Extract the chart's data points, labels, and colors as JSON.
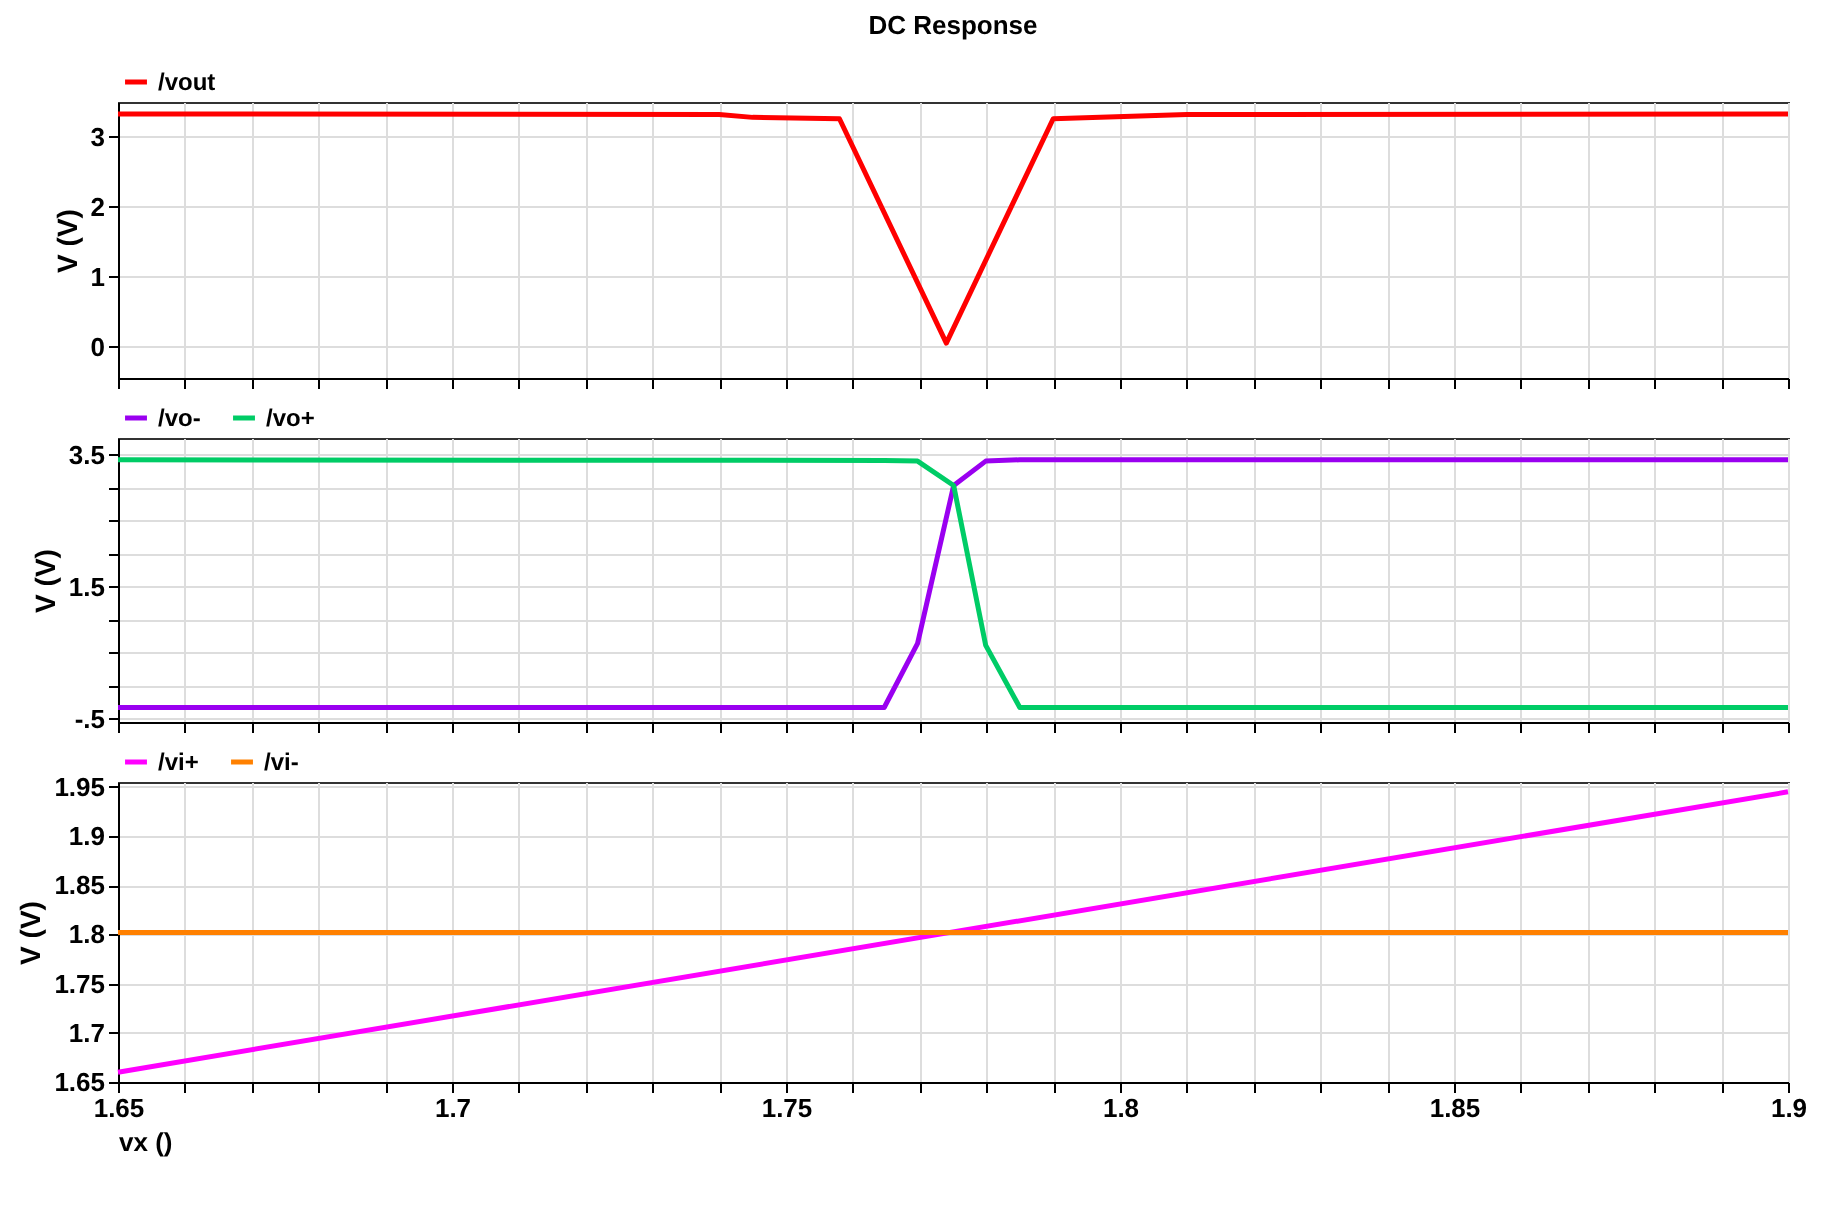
{
  "chart_data": [
    {
      "type": "line",
      "title": "DC Response",
      "ylabel": "V (V)",
      "legend": "top left",
      "grid": true,
      "tick_labels": "y",
      "marker": "none",
      "line_style": "solid",
      "xlim": [
        1.65,
        1.9
      ],
      "xticks": [
        1.65,
        {
          "value": 1.66,
          "label": null
        },
        {
          "value": 1.67,
          "label": null
        },
        {
          "value": 1.68,
          "label": null
        },
        {
          "value": 1.69,
          "label": null
        },
        1.7,
        {
          "value": 1.71,
          "label": null
        },
        {
          "value": 1.72,
          "label": null
        },
        {
          "value": 1.73,
          "label": null
        },
        {
          "value": 1.74,
          "label": null
        },
        1.75,
        {
          "value": 1.76,
          "label": null
        },
        {
          "value": 1.77,
          "label": null
        },
        {
          "value": 1.78,
          "label": null
        },
        {
          "value": 1.79,
          "label": null
        },
        1.8,
        {
          "value": 1.81,
          "label": null
        },
        {
          "value": 1.82,
          "label": null
        },
        {
          "value": 1.83,
          "label": null
        },
        {
          "value": 1.84,
          "label": null
        },
        1.85,
        {
          "value": 1.86,
          "label": null
        },
        {
          "value": 1.87,
          "label": null
        },
        {
          "value": 1.88,
          "label": null
        },
        {
          "value": 1.89,
          "label": null
        },
        1.9
      ],
      "ylim": [
        -0.45,
        3.5
      ],
      "yticks": [
        0,
        1,
        2,
        3
      ],
      "x": [
        1.65,
        1.74,
        1.745,
        1.758,
        1.774,
        1.79,
        1.81,
        1.9
      ],
      "series": [
        {
          "name": "/vout",
          "color": "#ff0000",
          "values": [
            3.33,
            3.32,
            3.28,
            3.26,
            0.05,
            3.26,
            3.32,
            3.33
          ]
        }
      ]
    },
    {
      "type": "line",
      "ylabel": "V (V)",
      "legend": "top left",
      "grid": true,
      "tick_labels": "y",
      "marker": "none",
      "line_style": "solid",
      "xlim": [
        1.65,
        1.9
      ],
      "xticks": [
        1.65,
        {
          "value": 1.66,
          "label": null
        },
        {
          "value": 1.67,
          "label": null
        },
        {
          "value": 1.68,
          "label": null
        },
        {
          "value": 1.69,
          "label": null
        },
        1.7,
        {
          "value": 1.71,
          "label": null
        },
        {
          "value": 1.72,
          "label": null
        },
        {
          "value": 1.73,
          "label": null
        },
        {
          "value": 1.74,
          "label": null
        },
        1.75,
        {
          "value": 1.76,
          "label": null
        },
        {
          "value": 1.77,
          "label": null
        },
        {
          "value": 1.78,
          "label": null
        },
        {
          "value": 1.79,
          "label": null
        },
        1.8,
        {
          "value": 1.81,
          "label": null
        },
        {
          "value": 1.82,
          "label": null
        },
        {
          "value": 1.83,
          "label": null
        },
        {
          "value": 1.84,
          "label": null
        },
        1.85,
        {
          "value": 1.86,
          "label": null
        },
        {
          "value": 1.87,
          "label": null
        },
        {
          "value": 1.88,
          "label": null
        },
        {
          "value": 1.89,
          "label": null
        },
        1.9
      ],
      "ylim": [
        -0.55,
        3.75
      ],
      "yticks": [
        {
          "value": -0.5,
          "label": "-.5"
        },
        {
          "value": 0,
          "label": null
        },
        {
          "value": 0.5,
          "label": null
        },
        {
          "value": 1,
          "label": null
        },
        1.5,
        {
          "value": 2,
          "label": null
        },
        {
          "value": 2.5,
          "label": null
        },
        {
          "value": 3,
          "label": null
        },
        3.5
      ],
      "x": [
        1.65,
        1.7647,
        1.7697,
        1.7751,
        1.7799,
        1.785,
        1.9
      ],
      "series": [
        {
          "name": "/vo-",
          "color": "#9a00f0",
          "values": [
            -0.33,
            -0.33,
            0.64,
            3.03,
            3.4,
            3.42,
            3.42
          ]
        },
        {
          "name": "/vo+",
          "color": "#00cc66",
          "values": [
            3.42,
            3.41,
            3.4,
            3.03,
            0.61,
            -0.33,
            -0.33
          ]
        }
      ]
    },
    {
      "type": "line",
      "ylabel": "V (V)",
      "xlabel": "vx ()",
      "legend": "top left",
      "grid": true,
      "marker": "none",
      "line_style": "solid",
      "xlim": [
        1.65,
        1.9
      ],
      "xticks": [
        1.65,
        {
          "value": 1.66,
          "label": null
        },
        {
          "value": 1.67,
          "label": null
        },
        {
          "value": 1.68,
          "label": null
        },
        {
          "value": 1.69,
          "label": null
        },
        1.7,
        {
          "value": 1.71,
          "label": null
        },
        {
          "value": 1.72,
          "label": null
        },
        {
          "value": 1.73,
          "label": null
        },
        {
          "value": 1.74,
          "label": null
        },
        1.75,
        {
          "value": 1.76,
          "label": null
        },
        {
          "value": 1.77,
          "label": null
        },
        {
          "value": 1.78,
          "label": null
        },
        {
          "value": 1.79,
          "label": null
        },
        1.8,
        {
          "value": 1.81,
          "label": null
        },
        {
          "value": 1.82,
          "label": null
        },
        {
          "value": 1.83,
          "label": null
        },
        {
          "value": 1.84,
          "label": null
        },
        1.85,
        {
          "value": 1.86,
          "label": null
        },
        {
          "value": 1.87,
          "label": null
        },
        {
          "value": 1.88,
          "label": null
        },
        {
          "value": 1.89,
          "label": null
        },
        1.9
      ],
      "ylim": [
        1.65,
        1.955
      ],
      "yticks": [
        1.65,
        1.7,
        1.75,
        1.8,
        1.85,
        1.9,
        1.95
      ],
      "x": [
        1.65,
        1.9
      ],
      "series": [
        {
          "name": "/vi+",
          "color": "#ff00ff",
          "values": [
            1.66,
            1.945
          ]
        },
        {
          "name": "/vi-",
          "color": "#ff8000",
          "values": [
            1.802,
            1.802
          ]
        }
      ]
    }
  ]
}
